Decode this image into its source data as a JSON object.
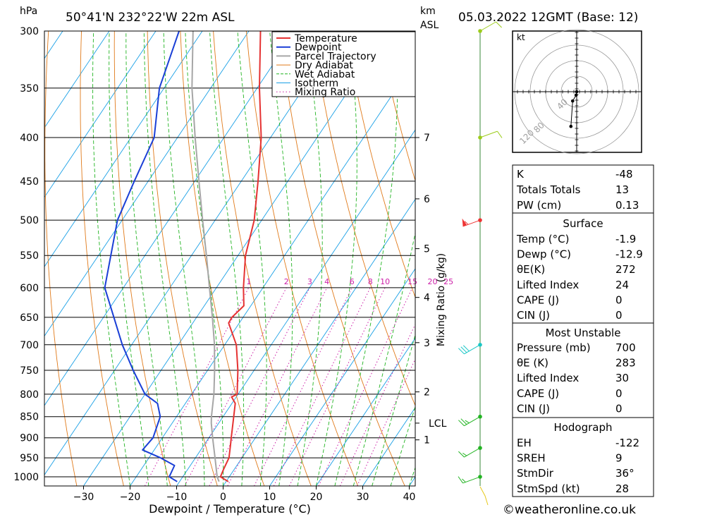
{
  "header": {
    "location": "50°41'N  232°22'W  22m  ASL",
    "datetime": "05.03.2022  12GMT  (Base: 12)",
    "hpa_unit": "hPa",
    "km_unit": "km",
    "asl_unit": "ASL"
  },
  "chart_data": {
    "type": "line",
    "xlabel": "Dewpoint / Temperature (°C)",
    "ylabel_right": "Mixing Ratio (g/kg)",
    "x_ticks": [
      -30,
      -20,
      -10,
      0,
      10,
      20,
      30,
      40
    ],
    "xlim": [
      -40,
      40
    ],
    "pressure_levels": [
      300,
      350,
      400,
      450,
      500,
      550,
      600,
      650,
      700,
      750,
      800,
      850,
      900,
      950,
      1000
    ],
    "ylim_hpa": [
      1025,
      300
    ],
    "y_scale": "log",
    "km_ticks": [
      {
        "label": "7",
        "p": 400
      },
      {
        "label": "6",
        "p": 472
      },
      {
        "label": "5",
        "p": 540
      },
      {
        "label": "4",
        "p": 616
      },
      {
        "label": "3",
        "p": 696
      },
      {
        "label": "2",
        "p": 795
      },
      {
        "label": "LCL",
        "p": 865
      },
      {
        "label": "1",
        "p": 905
      }
    ],
    "mixing_ratio_labels": [
      "1",
      "2",
      "3",
      "4",
      "6",
      "8",
      "10",
      "15",
      "20",
      "25"
    ],
    "mixing_ratio_values": [
      1,
      2,
      3,
      4,
      6,
      8,
      10,
      15,
      20,
      25
    ],
    "mixing_ratio_label_p": 600,
    "legend": [
      "Temperature",
      "Dewpoint",
      "Parcel Trajectory",
      "Dry Adiabat",
      "Wet Adiabat",
      "Isotherm",
      "Mixing Ratio"
    ],
    "series": [
      {
        "name": "Temperature",
        "color": "#e53232",
        "points": [
          [
            1013,
            0.5
          ],
          [
            1000,
            -1.9
          ],
          [
            980,
            -2.3
          ],
          [
            950,
            -2.8
          ],
          [
            920,
            -4.2
          ],
          [
            900,
            -5.2
          ],
          [
            860,
            -7.2
          ],
          [
            820,
            -9.3
          ],
          [
            806,
            -11
          ],
          [
            800,
            -10.2
          ],
          [
            750,
            -13.5
          ],
          [
            700,
            -17.5
          ],
          [
            660,
            -22.3
          ],
          [
            650,
            -22.4
          ],
          [
            630,
            -21.5
          ],
          [
            600,
            -24.2
          ],
          [
            550,
            -28.4
          ],
          [
            500,
            -31.6
          ],
          [
            450,
            -36.4
          ],
          [
            400,
            -42
          ],
          [
            350,
            -49.5
          ],
          [
            300,
            -57.5
          ]
        ]
      },
      {
        "name": "Dewpoint",
        "color": "#1a3fd6",
        "points": [
          [
            1013,
            -10.5
          ],
          [
            1000,
            -12.9
          ],
          [
            970,
            -13.4
          ],
          [
            950,
            -17.5
          ],
          [
            930,
            -22.5
          ],
          [
            900,
            -22
          ],
          [
            850,
            -23.5
          ],
          [
            820,
            -26
          ],
          [
            800,
            -30
          ],
          [
            750,
            -36
          ],
          [
            700,
            -42
          ],
          [
            600,
            -54
          ],
          [
            500,
            -61
          ],
          [
            450,
            -63
          ],
          [
            400,
            -65
          ],
          [
            350,
            -71
          ],
          [
            300,
            -75
          ]
        ]
      },
      {
        "name": "Parcel Trajectory",
        "color": "#a6a6a6",
        "points": [
          [
            1013,
            -1.5
          ],
          [
            1000,
            -2.6
          ],
          [
            950,
            -5.8
          ],
          [
            900,
            -9.2
          ],
          [
            865,
            -11.6
          ],
          [
            850,
            -12.5
          ],
          [
            800,
            -15.2
          ],
          [
            750,
            -18.5
          ],
          [
            700,
            -22.2
          ],
          [
            650,
            -26.6
          ],
          [
            600,
            -31.5
          ],
          [
            550,
            -36.8
          ],
          [
            500,
            -42.7
          ],
          [
            450,
            -49.1
          ],
          [
            400,
            -56.2
          ],
          [
            350,
            -64
          ],
          [
            300,
            -72
          ]
        ]
      }
    ],
    "wind_barbs": [
      {
        "p": 300,
        "dir": 60,
        "kt": 10
      },
      {
        "p": 400,
        "dir": 70,
        "kt": 10
      },
      {
        "p": 500,
        "dir": 250,
        "kt": 55
      },
      {
        "p": 700,
        "dir": 240,
        "kt": 30
      },
      {
        "p": 850,
        "dir": 240,
        "kt": 25
      },
      {
        "p": 925,
        "dir": 240,
        "kt": 15
      },
      {
        "p": 1000,
        "dir": 250,
        "kt": 15
      }
    ],
    "hodograph": {
      "unit": "kt",
      "ring_labels": [
        "40",
        "80",
        "120"
      ],
      "points": [
        [
          0,
          0
        ],
        [
          -1,
          -6
        ],
        [
          -7,
          -16
        ],
        [
          -10,
          -60
        ]
      ]
    }
  },
  "indices": {
    "k": {
      "label": "K",
      "value": "-48"
    },
    "tt": {
      "label": "Totals Totals",
      "value": "13"
    },
    "pw": {
      "label": "PW (cm)",
      "value": "0.13"
    }
  },
  "surface": {
    "title": "Surface",
    "rows": [
      {
        "label": "Temp (°C)",
        "value": "-1.9"
      },
      {
        "label": "Dewp (°C)",
        "value": "-12.9"
      },
      {
        "label": "θE(K)",
        "value": "272"
      },
      {
        "label": "Lifted Index",
        "value": "24"
      },
      {
        "label": "CAPE (J)",
        "value": "0"
      },
      {
        "label": "CIN (J)",
        "value": "0"
      }
    ]
  },
  "most_unstable": {
    "title": "Most Unstable",
    "rows": [
      {
        "label": "Pressure (mb)",
        "value": "700"
      },
      {
        "label": "θE (K)",
        "value": "283"
      },
      {
        "label": "Lifted Index",
        "value": "30"
      },
      {
        "label": "CAPE (J)",
        "value": "0"
      },
      {
        "label": "CIN (J)",
        "value": "0"
      }
    ]
  },
  "hodograph_table": {
    "title": "Hodograph",
    "rows": [
      {
        "label": "EH",
        "value": "-122"
      },
      {
        "label": "SREH",
        "value": "9"
      },
      {
        "label": "StmDir",
        "value": "36°"
      },
      {
        "label": "StmSpd (kt)",
        "value": "28"
      }
    ]
  },
  "footer": {
    "copyright": "©weatheronline.co.uk"
  }
}
